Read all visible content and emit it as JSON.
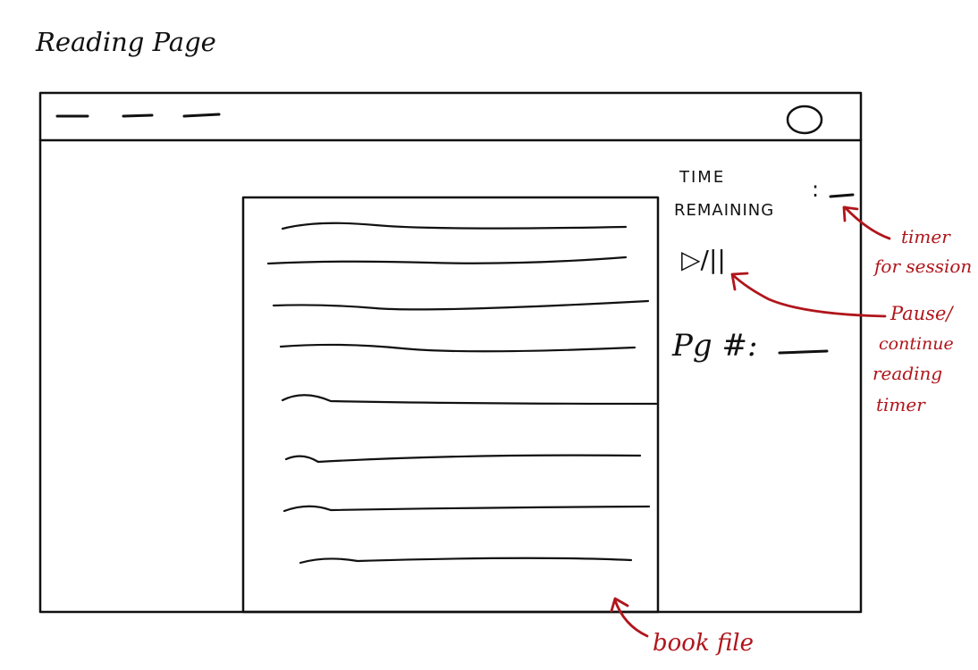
{
  "page_title": "Reading Page",
  "sidebar": {
    "time_label_line1": "TIME",
    "time_label_line2": "REMAINING",
    "time_colon": ":",
    "pause_play": "▷/||",
    "page_label": "Pg #:"
  },
  "annotations": {
    "timer": [
      "timer",
      "for session"
    ],
    "pause": [
      "Pause/",
      "continue",
      "reading",
      "timer"
    ],
    "book": "book file"
  },
  "colors": {
    "ink": "#111111",
    "annotation": "#b0151b"
  }
}
